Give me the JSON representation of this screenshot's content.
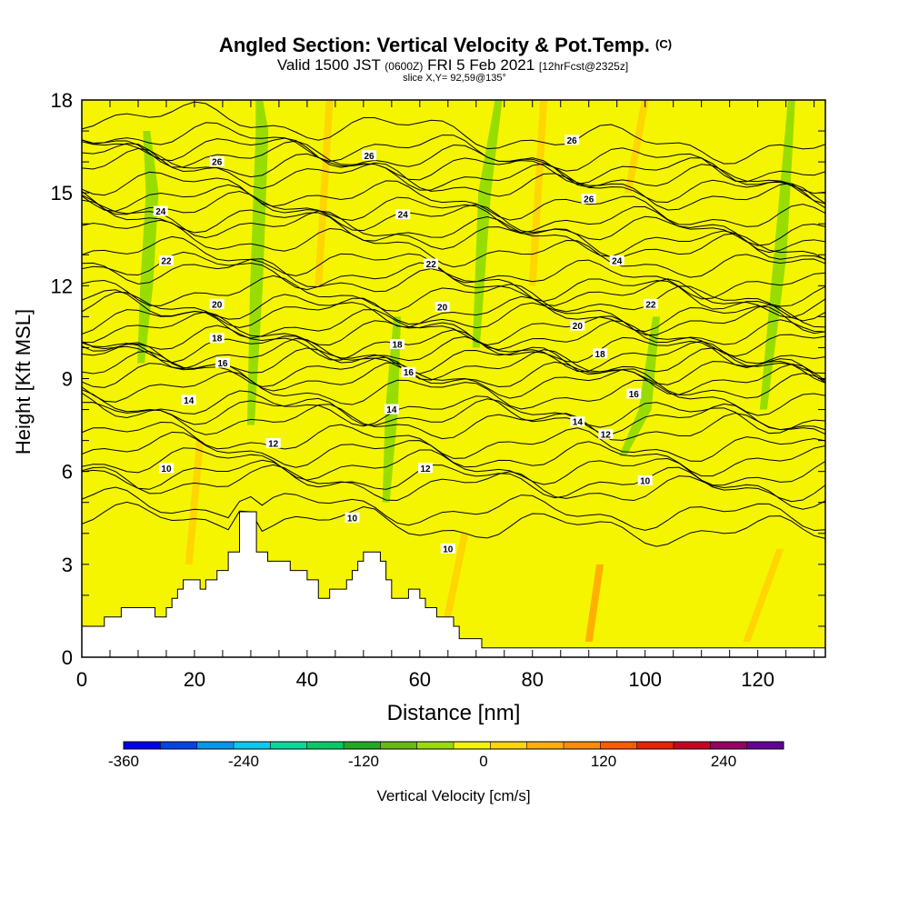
{
  "header": {
    "title_main": "Angled Section: Vertical Velocity & Pot.Temp.",
    "title_mark": "(C)",
    "valid_prefix": "Valid 1500 JST",
    "valid_utc": "(0600Z)",
    "valid_date": "FRI 5 Feb 2021",
    "forecast": "[12hrFcst@2325z]",
    "slice": "slice X,Y= 92,59@135°"
  },
  "chart_data": {
    "type": "contour",
    "xlabel": "Distance [nm]",
    "ylabel": "Height [Kft MSL]",
    "xlim": [
      0,
      132
    ],
    "ylim": [
      0,
      18
    ],
    "x_ticks": [
      0,
      20,
      40,
      60,
      80,
      100,
      120
    ],
    "y_ticks": [
      0,
      3,
      6,
      9,
      12,
      15,
      18
    ],
    "background_color": "#f5f500",
    "terrain": [
      [
        0,
        1.0
      ],
      [
        4,
        1.0
      ],
      [
        4,
        1.3
      ],
      [
        7,
        1.3
      ],
      [
        7,
        1.6
      ],
      [
        13,
        1.6
      ],
      [
        13,
        1.3
      ],
      [
        15,
        1.3
      ],
      [
        15,
        1.6
      ],
      [
        16,
        1.6
      ],
      [
        16,
        1.9
      ],
      [
        17,
        1.9
      ],
      [
        17,
        2.2
      ],
      [
        18,
        2.2
      ],
      [
        18,
        2.5
      ],
      [
        21,
        2.5
      ],
      [
        21,
        2.2
      ],
      [
        22,
        2.2
      ],
      [
        22,
        2.5
      ],
      [
        24,
        2.5
      ],
      [
        24,
        2.8
      ],
      [
        26,
        2.8
      ],
      [
        26,
        3.4
      ],
      [
        28,
        3.4
      ],
      [
        28,
        4.7
      ],
      [
        31,
        4.7
      ],
      [
        31,
        3.4
      ],
      [
        33,
        3.4
      ],
      [
        33,
        3.1
      ],
      [
        37,
        3.1
      ],
      [
        37,
        2.8
      ],
      [
        40,
        2.8
      ],
      [
        40,
        2.5
      ],
      [
        42,
        2.5
      ],
      [
        42,
        1.9
      ],
      [
        44,
        1.9
      ],
      [
        44,
        2.2
      ],
      [
        47,
        2.2
      ],
      [
        47,
        2.5
      ],
      [
        48,
        2.5
      ],
      [
        48,
        2.8
      ],
      [
        49,
        2.8
      ],
      [
        49,
        3.1
      ],
      [
        50,
        3.1
      ],
      [
        50,
        3.4
      ],
      [
        53,
        3.4
      ],
      [
        53,
        3.1
      ],
      [
        54,
        3.1
      ],
      [
        54,
        2.5
      ],
      [
        55,
        2.5
      ],
      [
        55,
        1.9
      ],
      [
        58,
        1.9
      ],
      [
        58,
        2.2
      ],
      [
        60,
        2.2
      ],
      [
        60,
        1.9
      ],
      [
        61,
        1.9
      ],
      [
        61,
        1.6
      ],
      [
        63,
        1.6
      ],
      [
        63,
        1.3
      ],
      [
        66,
        1.3
      ],
      [
        66,
        1.0
      ],
      [
        67,
        1.0
      ],
      [
        67,
        0.6
      ],
      [
        71,
        0.6
      ],
      [
        71,
        0.3
      ],
      [
        132,
        0.3
      ]
    ],
    "velocity_regions": [
      {
        "value": -60,
        "x": [
          10.5,
          11.5,
          12.5,
          11.5
        ],
        "y": [
          9.5,
          12,
          15,
          17
        ]
      },
      {
        "value": -60,
        "x": [
          30,
          31,
          32,
          31.5
        ],
        "y": [
          7.5,
          12,
          17,
          18
        ]
      },
      {
        "value": -60,
        "x": [
          54,
          55,
          56
        ],
        "y": [
          5,
          8,
          11
        ]
      },
      {
        "value": -60,
        "x": [
          70,
          71.5,
          74
        ],
        "y": [
          10,
          15,
          18
        ]
      },
      {
        "value": -60,
        "x": [
          96,
          100,
          102
        ],
        "y": [
          6.5,
          8,
          11
        ]
      },
      {
        "value": -60,
        "x": [
          121,
          124,
          126
        ],
        "y": [
          8,
          13,
          18
        ]
      },
      {
        "value": 30,
        "x": [
          19,
          21
        ],
        "y": [
          3,
          7
        ]
      },
      {
        "value": 30,
        "x": [
          42,
          44
        ],
        "y": [
          12,
          18
        ]
      },
      {
        "value": 30,
        "x": [
          80,
          82
        ],
        "y": [
          12,
          18
        ]
      },
      {
        "value": 30,
        "x": [
          97,
          100
        ],
        "y": [
          15,
          18
        ]
      },
      {
        "value": 30,
        "x": [
          64,
          68
        ],
        "y": [
          0.5,
          4
        ]
      },
      {
        "value": 60,
        "x": [
          90,
          92
        ],
        "y": [
          0.5,
          3
        ]
      },
      {
        "value": 30,
        "x": [
          118,
          124
        ],
        "y": [
          0.5,
          3.5
        ]
      }
    ],
    "theta_contours": [
      {
        "label": "10",
        "label_pos": [
          15,
          6.1
        ],
        "base": 5.8
      },
      {
        "label": "10",
        "label_pos": [
          48,
          4.5
        ],
        "base": 5.0
      },
      {
        "label": "10",
        "label_pos": [
          65,
          3.5
        ],
        "base": 4.5
      },
      {
        "label": "10",
        "label_pos": [
          100,
          5.7
        ],
        "base": 6.0
      },
      {
        "label": "12",
        "label_pos": [
          34,
          6.9
        ],
        "base": 6.8
      },
      {
        "label": "12",
        "label_pos": [
          61,
          6.1
        ],
        "base": 6.4
      },
      {
        "label": "12",
        "label_pos": [
          93,
          7.2
        ],
        "base": 7.2
      },
      {
        "label": "14",
        "label_pos": [
          19,
          8.3
        ],
        "base": 8.2
      },
      {
        "label": "14",
        "label_pos": [
          55,
          8.0
        ],
        "base": 8.1
      },
      {
        "label": "14",
        "label_pos": [
          88,
          7.6
        ],
        "base": 7.8
      },
      {
        "label": "16",
        "label_pos": [
          25,
          9.5
        ],
        "base": 9.4
      },
      {
        "label": "16",
        "label_pos": [
          58,
          9.2
        ],
        "base": 9.2
      },
      {
        "label": "16",
        "label_pos": [
          98,
          8.5
        ],
        "base": 8.8
      },
      {
        "label": "18",
        "label_pos": [
          24,
          10.3
        ],
        "base": 10.3
      },
      {
        "label": "18",
        "label_pos": [
          56,
          10.1
        ],
        "base": 10.1
      },
      {
        "label": "18",
        "label_pos": [
          92,
          9.8
        ],
        "base": 9.9
      },
      {
        "label": "20",
        "label_pos": [
          24,
          11.4
        ],
        "base": 11.3
      },
      {
        "label": "20",
        "label_pos": [
          64,
          11.3
        ],
        "base": 11.3
      },
      {
        "label": "20",
        "label_pos": [
          88,
          10.7
        ],
        "base": 10.7
      },
      {
        "label": "22",
        "label_pos": [
          15,
          12.8
        ],
        "base": 12.8
      },
      {
        "label": "22",
        "label_pos": [
          62,
          12.7
        ],
        "base": 12.7
      },
      {
        "label": "22",
        "label_pos": [
          101,
          11.4
        ],
        "base": 11.4
      },
      {
        "label": "24",
        "label_pos": [
          14,
          14.4
        ],
        "base": 14.4
      },
      {
        "label": "24",
        "label_pos": [
          57,
          14.3
        ],
        "base": 14.3
      },
      {
        "label": "24",
        "label_pos": [
          95,
          12.8
        ],
        "base": 12.8
      },
      {
        "label": "26",
        "label_pos": [
          24,
          16.0
        ],
        "base": 16.0
      },
      {
        "label": "26",
        "label_pos": [
          51,
          16.2
        ],
        "base": 16.2
      },
      {
        "label": "26",
        "label_pos": [
          90,
          14.8
        ],
        "base": 14.8
      },
      {
        "label": "26",
        "label_pos": [
          87,
          16.7
        ],
        "base": 16.7
      }
    ],
    "extra_isolines": [
      9.7,
      10.9,
      11.9,
      13.2,
      13.8,
      15.0,
      15.4,
      16.5,
      17.0,
      17.6
    ],
    "colorbar": {
      "label": "Vertical Velocity [cm/s]",
      "tick_labels": [
        "-360",
        "-240",
        "-120",
        "0",
        "120",
        "240"
      ],
      "tick_values": [
        -360,
        -240,
        -120,
        0,
        120,
        240
      ],
      "vmin": -360,
      "vmax": 300,
      "colors": [
        "#0000ee",
        "#0044ee",
        "#0099ee",
        "#00ccee",
        "#00dd99",
        "#00cc66",
        "#22aa22",
        "#66bb11",
        "#99dd00",
        "#f5f500",
        "#ffd600",
        "#ffb000",
        "#ff8c00",
        "#ff5c00",
        "#ee2000",
        "#cc0022",
        "#990066",
        "#660099"
      ]
    }
  }
}
